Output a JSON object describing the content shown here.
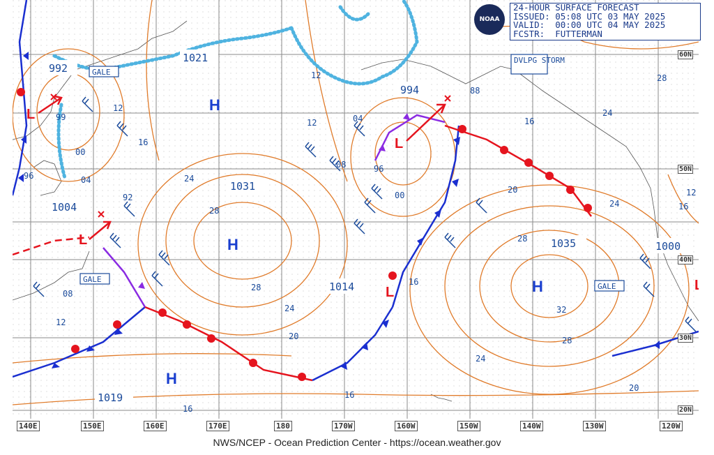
{
  "header": {
    "line1": "24-HOUR SURFACE FORECAST",
    "line2": "ISSUED: 05:08 UTC 03 MAY 2025",
    "line3": "VALID:  00:00 UTC 04 MAY 2025",
    "line4": "FCSTR:  FUTTERMAN"
  },
  "logo_text": "NOAA",
  "footer": "NWS/NCEP - Ocean Prediction Center - https://ocean.weather.gov",
  "longitude_labels": [
    "140E",
    "150E",
    "160E",
    "170E",
    "180",
    "170W",
    "160W",
    "150W",
    "140W",
    "130W",
    "120W"
  ],
  "latitude_labels": [
    "60N",
    "50N",
    "40N",
    "30N",
    "20N"
  ],
  "highs": [
    {
      "pressure": "1031",
      "symbol": "H"
    },
    {
      "pressure": "1035",
      "symbol": "H"
    },
    {
      "pressure": "1019",
      "symbol": "H"
    },
    {
      "pressure": "",
      "symbol": "H"
    }
  ],
  "lows": [
    {
      "pressure": "992"
    },
    {
      "pressure": "1004"
    },
    {
      "pressure": "994"
    },
    {
      "pressure": "1014"
    },
    {
      "pressure": "1000"
    },
    {
      "pressure": "1021"
    }
  ],
  "warnings": [
    "GALE",
    "GALE",
    "GALE",
    "DVLPG STORM"
  ],
  "isobar_labels": [
    "12",
    "16",
    "24",
    "28",
    "28",
    "24",
    "20",
    "16",
    "16",
    "20",
    "24",
    "28",
    "32",
    "28",
    "24",
    "16",
    "12",
    "08",
    "04",
    "00",
    "96",
    "04",
    "08",
    "12",
    "16",
    "20",
    "24",
    "28",
    "00",
    "96",
    "88",
    "99",
    "92",
    "12",
    "16",
    "12"
  ],
  "colors": {
    "isobar": "#e07b2a",
    "cold_front": "#1a2fd0",
    "warm_front": "#e5141e",
    "occluded_front": "#8a2be2",
    "ice_edge": "#4fb3e0",
    "text": "#1a4a9a"
  }
}
